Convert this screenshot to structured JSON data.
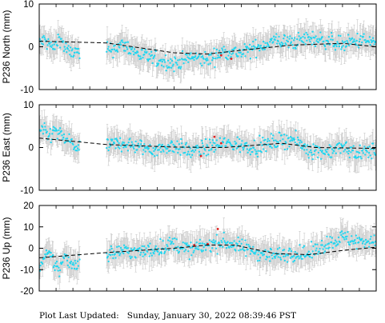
{
  "footer": {
    "label": "Plot Last Updated:",
    "timestamp": "Sunday, January 30, 2022 08:39:46 PST"
  },
  "colors": {
    "points": "#1fd6f0",
    "outliers": "#e0201e",
    "error_bars": "#c8c8c8",
    "trend": "#000000",
    "axes": "#000000"
  },
  "chart_data": [
    {
      "type": "scatter",
      "ylabel": "P236 North (mm)",
      "ylim": [
        -10,
        10
      ],
      "yticks": [
        -10,
        0,
        10
      ],
      "grid": false,
      "gap": [
        0.12,
        0.2
      ],
      "segments": [
        {
          "x": [
            0.0,
            0.015,
            0.03,
            0.045,
            0.06,
            0.075,
            0.09,
            0.105,
            0.12
          ],
          "y": [
            1.0,
            1.5,
            0.5,
            -0.5,
            2.5,
            0.0,
            -1.5,
            -1.0,
            -2.0
          ]
        },
        {
          "x": [
            0.2,
            0.25,
            0.3,
            0.35,
            0.4,
            0.45,
            0.5,
            0.55,
            0.6,
            0.65,
            0.7,
            0.75,
            0.8,
            0.85,
            0.9,
            0.95,
            1.0
          ],
          "y": [
            -1.0,
            0.5,
            -2.0,
            -3.0,
            -4.0,
            -2.5,
            -3.0,
            -1.0,
            -1.5,
            0.0,
            1.5,
            1.0,
            2.0,
            1.5,
            0.5,
            1.5,
            1.0
          ]
        }
      ],
      "trend": {
        "x": [
          0.0,
          0.2,
          0.4,
          0.5,
          0.6,
          0.75,
          0.9,
          1.0
        ],
        "y": [
          1.3,
          0.9,
          -1.4,
          -1.7,
          -0.8,
          0.4,
          0.8,
          0.0
        ]
      },
      "outliers": [
        {
          "x": 0.54,
          "y": -2.0
        },
        {
          "x": 0.57,
          "y": -2.8
        }
      ]
    },
    {
      "type": "scatter",
      "ylabel": "P236 East (mm)",
      "ylim": [
        -10,
        10
      ],
      "yticks": [
        -10,
        0,
        10
      ],
      "grid": false,
      "gap": [
        0.12,
        0.2
      ],
      "segments": [
        {
          "x": [
            0.0,
            0.015,
            0.03,
            0.045,
            0.06,
            0.075,
            0.09,
            0.105,
            0.12
          ],
          "y": [
            4.0,
            3.5,
            2.5,
            4.0,
            3.0,
            2.0,
            1.5,
            0.5,
            -1.0
          ]
        },
        {
          "x": [
            0.2,
            0.25,
            0.3,
            0.35,
            0.4,
            0.45,
            0.5,
            0.55,
            0.6,
            0.65,
            0.7,
            0.75,
            0.8,
            0.85,
            0.9,
            0.95,
            1.0
          ],
          "y": [
            0.5,
            1.0,
            0.0,
            -0.5,
            0.5,
            -1.0,
            0.0,
            1.0,
            0.5,
            0.0,
            1.5,
            2.0,
            -0.5,
            -1.0,
            0.0,
            -1.5,
            -0.5
          ]
        }
      ],
      "trend": {
        "x": [
          0.0,
          0.2,
          0.4,
          0.55,
          0.72,
          0.82,
          1.0
        ],
        "y": [
          2.2,
          0.7,
          0.1,
          0.0,
          1.0,
          0.0,
          -0.2
        ]
      },
      "outliers": [
        {
          "x": 0.52,
          "y": 2.5
        },
        {
          "x": 0.54,
          "y": 1.0
        },
        {
          "x": 0.48,
          "y": -2.0
        }
      ]
    },
    {
      "type": "scatter",
      "ylabel": "P236 Up (mm)",
      "ylim": [
        -20,
        20
      ],
      "yticks": [
        -20,
        -10,
        0,
        10,
        20
      ],
      "grid": false,
      "gap": [
        0.12,
        0.2
      ],
      "segments": [
        {
          "x": [
            0.0,
            0.015,
            0.03,
            0.045,
            0.06,
            0.075,
            0.09,
            0.105,
            0.12
          ],
          "y": [
            -9.0,
            -5.0,
            -3.0,
            -7.0,
            -10.0,
            -4.0,
            -6.0,
            -8.0,
            -5.0
          ]
        },
        {
          "x": [
            0.2,
            0.25,
            0.3,
            0.35,
            0.4,
            0.45,
            0.5,
            0.55,
            0.6,
            0.65,
            0.7,
            0.75,
            0.8,
            0.85,
            0.9,
            0.95,
            1.0
          ],
          "y": [
            -3.0,
            -1.0,
            -2.0,
            0.0,
            2.0,
            -1.0,
            1.5,
            3.0,
            0.5,
            -2.0,
            -3.5,
            -2.0,
            -3.0,
            2.0,
            5.0,
            3.0,
            4.0
          ]
        }
      ],
      "trend": {
        "x": [
          0.0,
          0.2,
          0.4,
          0.5,
          0.58,
          0.7,
          0.8,
          0.9,
          1.0
        ],
        "y": [
          -4.5,
          -2.0,
          0.0,
          1.5,
          1.5,
          -2.5,
          -3.0,
          -1.0,
          0.5
        ]
      },
      "outliers": [
        {
          "x": 0.53,
          "y": 9.0
        },
        {
          "x": 0.5,
          "y": 2.0
        },
        {
          "x": 0.46,
          "y": 1.5
        }
      ]
    }
  ]
}
